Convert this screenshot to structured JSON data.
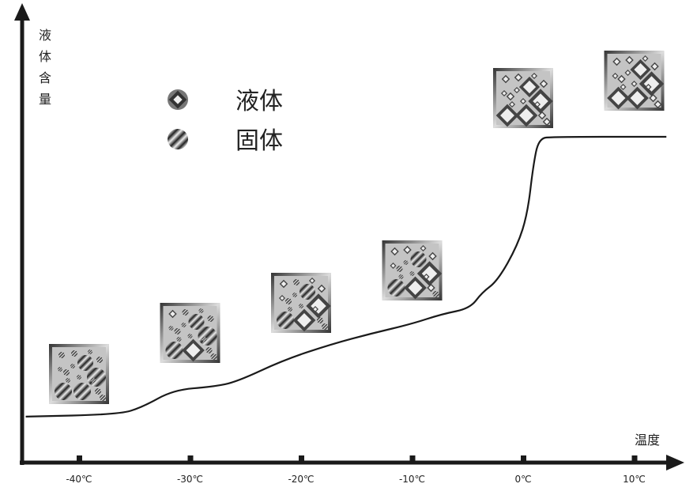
{
  "y_axis_label": [
    "液",
    "体",
    "含",
    "量"
  ],
  "x_axis_label": "温度",
  "legend": [
    {
      "label": "液体",
      "icon": "liquid-diamond-icon"
    },
    {
      "label": "固体",
      "icon": "solid-striped-circle-icon"
    }
  ],
  "colors": {
    "axis": "#1a1a1a",
    "curve": "#1a1a1a",
    "box_fill": "#c4c4c4"
  },
  "chart_data": {
    "type": "line",
    "xlabel": "温度",
    "ylabel": "液体含量",
    "x_ticks": [
      -40,
      -30,
      -20,
      -10,
      0,
      10
    ],
    "x_tick_labels": [
      "-40℃",
      "-30℃",
      "-20℃",
      "-10℃",
      "0℃",
      "10℃"
    ],
    "grid": false,
    "legend_placement": "top-left",
    "curve": {
      "x": [
        -44.8,
        -36.4,
        -34.3,
        -31.5,
        -27.9,
        -25.8,
        -21.5,
        -17.2,
        -13.7,
        -10.1,
        -7.3,
        -4.8,
        -3.7,
        -2.3,
        -0.5,
        0.4,
        0.9,
        1.4,
        2.7,
        12.9
      ],
      "y": [
        14.1,
        14.8,
        17.0,
        22.3,
        23.3,
        24.8,
        31.6,
        36.4,
        39.6,
        42.5,
        45.6,
        47.3,
        52.2,
        55.8,
        66.7,
        76.5,
        91.0,
        99.5,
        100,
        100
      ]
    },
    "phase_images": [
      {
        "temperature": -40,
        "state": "mostly solid"
      },
      {
        "temperature": -30,
        "state": "mostly solid"
      },
      {
        "temperature": -20,
        "state": "mixed"
      },
      {
        "temperature": -10,
        "state": "mixed"
      },
      {
        "temperature": 0,
        "state": "liquid"
      },
      {
        "temperature": 10,
        "state": "liquid"
      }
    ]
  }
}
